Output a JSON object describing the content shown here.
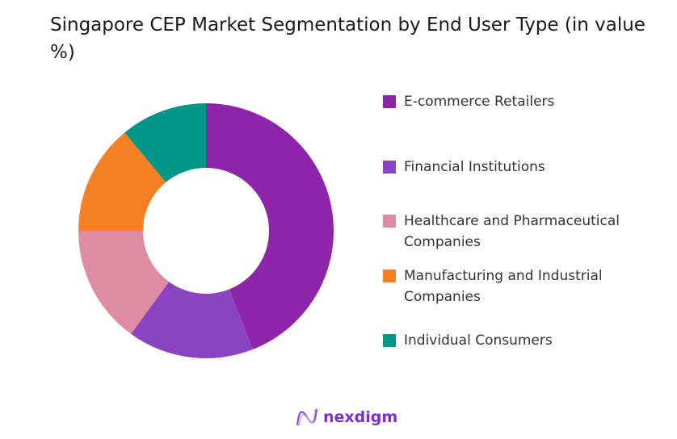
{
  "chart_data": {
    "type": "pie",
    "title": "Singapore CEP Market Segmentation by End User Type (in value %)",
    "donut": true,
    "legend_placement": "right",
    "categories": [
      "E-commerce Retailers",
      "Financial Institutions",
      "Healthcare and Pharmaceutical Companies",
      "Manufacturing and Industrial Companies",
      "Individual Consumers"
    ],
    "values": [
      44,
      16,
      15,
      14,
      11
    ],
    "colors": [
      "#8E24AA",
      "#8A44C1",
      "#E08BA4",
      "#F47F24",
      "#009688"
    ]
  },
  "logo": {
    "text": "nexdigm"
  }
}
